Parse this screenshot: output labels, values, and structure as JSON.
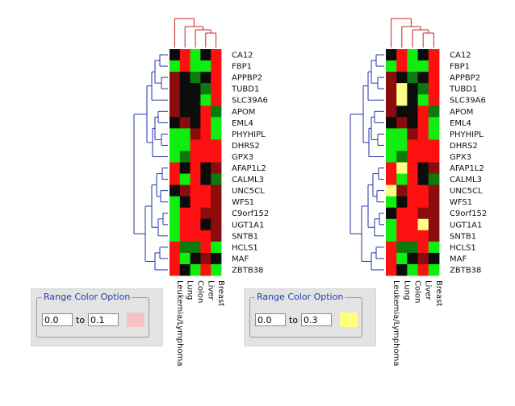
{
  "chart_data": [
    {
      "type": "heatmap",
      "columns": [
        "Leukemia/Lymphoma",
        "Lung",
        "Colon",
        "Liver",
        "Breast"
      ],
      "rows": [
        "CA12",
        "FBP1",
        "APPBP2",
        "TUBD1",
        "SLC39A6",
        "APOM",
        "EML4",
        "PHYHIPL",
        "DHRS2",
        "GPX3",
        "AFAP1L2",
        "CALML3",
        "UNC5CL",
        "WFS1",
        "C9orf152",
        "UGT1A1",
        "SNTB1",
        "HCLS1",
        "MAF",
        "ZBTB38"
      ],
      "cells": [
        [
          "k",
          "r",
          "g",
          "k",
          "r"
        ],
        [
          "g",
          "r",
          "g",
          "g",
          "r"
        ],
        [
          "dr",
          "k",
          "dg",
          "k",
          "r"
        ],
        [
          "dr",
          "k",
          "k",
          "dg",
          "r"
        ],
        [
          "dr",
          "k",
          "k",
          "g",
          "r"
        ],
        [
          "dr",
          "k",
          "k",
          "r",
          "dg"
        ],
        [
          "k",
          "dr",
          "k",
          "r",
          "g"
        ],
        [
          "g",
          "g",
          "dr",
          "r",
          "g"
        ],
        [
          "g",
          "g",
          "r",
          "r",
          "r"
        ],
        [
          "g",
          "dg",
          "r",
          "r",
          "r"
        ],
        [
          "r",
          "k",
          "r",
          "k",
          "dr"
        ],
        [
          "r",
          "g",
          "r",
          "k",
          "dg"
        ],
        [
          "k",
          "dr",
          "r",
          "r",
          "dr"
        ],
        [
          "g",
          "k",
          "r",
          "r",
          "dr"
        ],
        [
          "g",
          "r",
          "r",
          "dr",
          "dr"
        ],
        [
          "g",
          "r",
          "r",
          "k",
          "dr"
        ],
        [
          "g",
          "r",
          "r",
          "r",
          "dr"
        ],
        [
          "r",
          "dg",
          "dg",
          "r",
          "g"
        ],
        [
          "r",
          "g",
          "k",
          "dr",
          "k"
        ],
        [
          "r",
          "k",
          "g",
          "r",
          "g"
        ]
      ],
      "range_option": {
        "title": "Range Color Option",
        "from": "0.0",
        "to_label": "to",
        "to": "0.1",
        "color": "#f6c2c4"
      }
    },
    {
      "type": "heatmap",
      "columns": [
        "Leukemia/Lymphoma",
        "Lung",
        "Colon",
        "Liver",
        "Breast"
      ],
      "rows": [
        "CA12",
        "FBP1",
        "APPBP2",
        "TUBD1",
        "SLC39A6",
        "APOM",
        "EML4",
        "PHYHIPL",
        "DHRS2",
        "GPX3",
        "AFAP1L2",
        "CALML3",
        "UNC5CL",
        "WFS1",
        "C9orf152",
        "UGT1A1",
        "SNTB1",
        "HCLS1",
        "MAF",
        "ZBTB38"
      ],
      "cells": [
        [
          "k",
          "r",
          "g",
          "k",
          "r"
        ],
        [
          "g",
          "r",
          "g",
          "g",
          "r"
        ],
        [
          "dr",
          "k",
          "dg",
          "k",
          "r"
        ],
        [
          "dr",
          "y",
          "k",
          "dg",
          "r"
        ],
        [
          "dr",
          "y",
          "k",
          "g",
          "r"
        ],
        [
          "dr",
          "k",
          "k",
          "r",
          "dg"
        ],
        [
          "k",
          "dr",
          "k",
          "r",
          "g"
        ],
        [
          "g",
          "g",
          "dr",
          "r",
          "g"
        ],
        [
          "g",
          "g",
          "r",
          "r",
          "r"
        ],
        [
          "g",
          "dg",
          "r",
          "r",
          "r"
        ],
        [
          "r",
          "y",
          "r",
          "k",
          "dr"
        ],
        [
          "r",
          "g",
          "r",
          "k",
          "dg"
        ],
        [
          "y",
          "dr",
          "r",
          "r",
          "dr"
        ],
        [
          "g",
          "k",
          "r",
          "r",
          "dr"
        ],
        [
          "k",
          "r",
          "r",
          "dr",
          "dr"
        ],
        [
          "g",
          "r",
          "r",
          "y",
          "dr"
        ],
        [
          "g",
          "r",
          "r",
          "r",
          "dr"
        ],
        [
          "r",
          "dg",
          "dg",
          "r",
          "g"
        ],
        [
          "r",
          "g",
          "k",
          "dr",
          "k"
        ],
        [
          "r",
          "k",
          "g",
          "r",
          "g"
        ]
      ],
      "range_option": {
        "title": "Range Color Option",
        "from": "0.0",
        "to_label": "to",
        "to": "0.3",
        "color": "#ffff80"
      }
    }
  ],
  "colors": {
    "r": "#ff1010",
    "dr": "#8a0c0c",
    "g": "#10ee10",
    "dg": "#0c7a0c",
    "k": "#0c0c0c",
    "y": "#ffff88",
    "row_dendrogram": "#2233aa",
    "column_dendrogram": "#cc2222"
  }
}
